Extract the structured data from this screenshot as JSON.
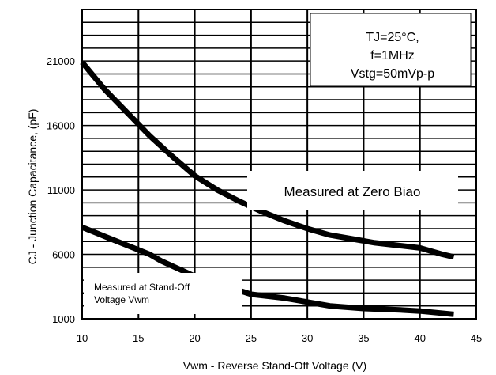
{
  "chart_data": {
    "type": "line",
    "title": "",
    "xlabel": "Vwm - Reverse Stand-Off Voltage (V)",
    "ylabel": "CJ - Junction Capacitance, (pF)",
    "xlim": [
      10,
      45
    ],
    "ylim": [
      1000,
      25000
    ],
    "xticks": [
      10,
      15,
      20,
      25,
      30,
      35,
      40,
      45
    ],
    "yticks": [
      1000,
      6000,
      11000,
      16000,
      21000
    ],
    "grid": true,
    "series": [
      {
        "name": "Measured at Zero Biao",
        "x": [
          10,
          12,
          14,
          16,
          18,
          20,
          22,
          24,
          26,
          28,
          30,
          32,
          34,
          36,
          38,
          40,
          42,
          43
        ],
        "y": [
          20900,
          18800,
          17000,
          15200,
          13600,
          12100,
          11000,
          10100,
          9300,
          8600,
          8000,
          7500,
          7200,
          6900,
          6700,
          6500,
          6000,
          5800
        ]
      },
      {
        "name": "Measured at Stand-Off Voltage Vwm",
        "x": [
          10,
          12,
          14,
          16,
          17,
          20,
          25,
          28,
          30,
          32,
          35,
          38,
          40,
          43
        ],
        "y": [
          8100,
          7400,
          6700,
          6000,
          5500,
          4300,
          2900,
          2600,
          2300,
          2000,
          1800,
          1700,
          1600,
          1350
        ]
      }
    ],
    "annotations": {
      "conditions": [
        "TJ=25°C,",
        "f=1MHz",
        "Vstg=50mVp-p"
      ],
      "zero_bias_label": "Measured at Zero Biao",
      "standoff_label": [
        "Measured at Stand-Off",
        "Voltage Vwm"
      ]
    },
    "line_color": "#000000"
  }
}
